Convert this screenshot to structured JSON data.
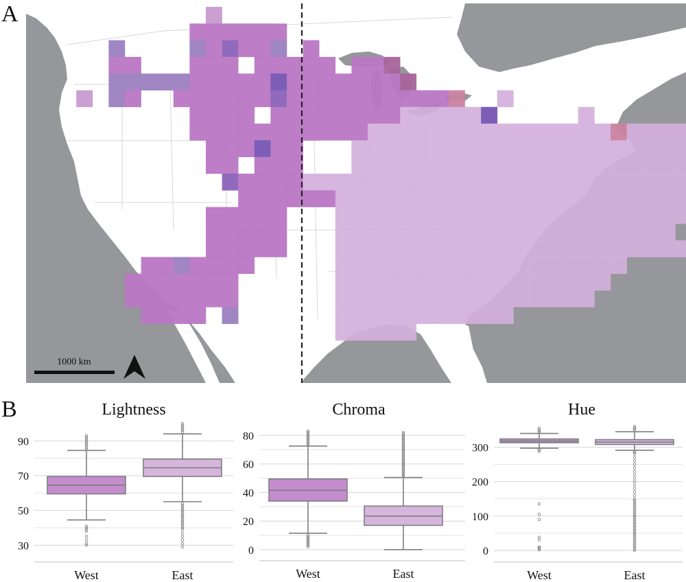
{
  "panel_labels": {
    "a": "A",
    "b": "B"
  },
  "map": {
    "scale_bar_label": "1000 km",
    "north_arrow": "north-arrow-icon",
    "colors": {
      "land": "#ffffff",
      "water": "#96979b",
      "divider": "#222222"
    },
    "grid_columns_lon_start": -125,
    "grid_rows_lat_start": 50,
    "grid_rows": [
      {
        "row": 0,
        "cells": "..........E..........................................."
      },
      {
        "row": 1,
        "cells": ".........DDDDDD......................................."
      },
      {
        "row": 2,
        "cells": "....B....BDCDDB.D....................................."
      },
      {
        "row": 3,
        "cells": "....DD...DDD.DDDDD.DDA................................"
      },
      {
        "row": 4,
        "cells": "....BBBBBDDDDDFDDDDDDDA..............................."
      },
      {
        "row": 5,
        "cells": "..E.BD..DDDDDDCDDDDDDDDDDH..G........................."
      },
      {
        "row": 6,
        "cells": ".........DDDD.DDDDDDDDGGGGGF.....G......D............."
      },
      {
        "row": 7,
        "cells": ".........DDDDDDDDDDDGGGGGGGGGGGGGGGHGGGGGGIIIF.GGG...."
      },
      {
        "row": 8,
        "cells": "..........DDDFDD...GGGGGGGGGGGGGGGGGGGGGGGGGGG........"
      },
      {
        "row": 9,
        "cells": "..........DD.DDD...GGGGGGGGGGGGGGGGGGGGGGGGGGG.G......"
      },
      {
        "row": 10,
        "cells": "...........CDDDDGGGGGGGGGGGGGGGGGGGGGGGGGGGG.........."
      },
      {
        "row": 11,
        "cells": "............DDDDDDGGGGGGGGGGGGGGGGGGGGGGGGGG.........."
      },
      {
        "row": 12,
        "cells": "..........DDDDD...GGGGGGGGGGGGGGGGGGGGGGG............."
      },
      {
        "row": 13,
        "cells": "..........DDDDD...GGGGGGGGGGGGGGGGGGGGG..............."
      },
      {
        "row": 14,
        "cells": "..........DDDDD...GGGGGGGGGGGGGGGGGGGGGG.............."
      },
      {
        "row": 15,
        "cells": "......DDBDDDD.....GGGGGGGGGGGGGGGGGG.................."
      },
      {
        "row": 16,
        "cells": ".....DDDDDDD......GGGGGGGGGGGGGGGGG..................."
      },
      {
        "row": 17,
        "cells": ".....DDDDDDD......GGGGGGGGGGGGGGGG...................."
      },
      {
        "row": 18,
        "cells": "......DDDD.B......GGGGGGGGGGG........................."
      },
      {
        "row": 19,
        "cells": "..................GGGGG..............................."
      }
    ]
  },
  "chart_data": [
    {
      "type": "boxplot",
      "title": "Lightness",
      "categories": [
        "West",
        "East"
      ],
      "ylim": [
        25,
        100
      ],
      "yticks": [
        30,
        50,
        70,
        90
      ],
      "ytick_labels": [
        "30",
        "50",
        "70",
        "90"
      ],
      "grid": true,
      "series": [
        {
          "name": "West",
          "color": "#c48ccd",
          "q1": 59.5,
          "median": 64.5,
          "q3": 69.5,
          "whisker_low": 44.5,
          "whisker_high": 84.5,
          "outliers": [
            30,
            31,
            33,
            35,
            38,
            39,
            40,
            41,
            85,
            86,
            87,
            88,
            89,
            90,
            91,
            92,
            93
          ]
        },
        {
          "name": "East",
          "color": "#d6b6dd",
          "q1": 69.5,
          "median": 74.5,
          "q3": 79.5,
          "whisker_low": 55,
          "whisker_high": 94,
          "outliers": [
            29,
            31,
            33,
            35,
            37,
            39,
            40,
            41,
            42,
            43,
            44,
            45,
            46,
            47,
            48,
            49,
            50,
            51,
            52,
            53,
            54,
            95,
            96,
            97,
            98,
            99,
            100
          ]
        }
      ]
    },
    {
      "type": "boxplot",
      "title": "Chroma",
      "categories": [
        "West",
        "East"
      ],
      "ylim": [
        -2,
        84
      ],
      "yticks": [
        0,
        20,
        40,
        60,
        80
      ],
      "ytick_labels": [
        "0",
        "20",
        "40",
        "60",
        "80"
      ],
      "grid": true,
      "series": [
        {
          "name": "West",
          "color": "#c48ccd",
          "q1": 34,
          "median": 41.5,
          "q3": 49.5,
          "whisker_low": 11.5,
          "whisker_high": 72.5,
          "outliers": [
            2,
            3,
            4,
            5,
            6,
            7,
            8,
            9,
            10,
            73,
            74,
            75,
            76,
            77,
            78,
            79,
            80,
            81,
            82,
            83
          ]
        },
        {
          "name": "East",
          "color": "#d6b6dd",
          "q1": 17,
          "median": 23.5,
          "q3": 30.5,
          "whisker_low": 0,
          "whisker_high": 50.5,
          "outliers": [
            51,
            52,
            53,
            54,
            55,
            56,
            57,
            58,
            59,
            60,
            61,
            62,
            63,
            64,
            65,
            66,
            67,
            68,
            69,
            70,
            71,
            72,
            73,
            74,
            75,
            76,
            77,
            78,
            79,
            80,
            81,
            82
          ]
        }
      ]
    },
    {
      "type": "boxplot",
      "title": "Hue",
      "categories": [
        "West",
        "East"
      ],
      "ylim": [
        -10,
        365
      ],
      "yticks": [
        0,
        100,
        200,
        300
      ],
      "ytick_labels": [
        "0",
        "100",
        "200",
        "300"
      ],
      "grid": true,
      "series": [
        {
          "name": "West",
          "color": "#c48ccd",
          "q1": 313,
          "median": 318,
          "q3": 324,
          "whisker_low": 297,
          "whisker_high": 340,
          "outliers": [
            2,
            5,
            8,
            10,
            30,
            38,
            90,
            105,
            135,
            288,
            292,
            295,
            342,
            346,
            350,
            355
          ]
        },
        {
          "name": "East",
          "color": "#d6b6dd",
          "q1": 308,
          "median": 315,
          "q3": 322,
          "whisker_low": 291,
          "whisker_high": 345,
          "outliers": [
            0,
            5,
            10,
            15,
            20,
            25,
            30,
            35,
            40,
            45,
            50,
            55,
            60,
            65,
            70,
            75,
            80,
            85,
            90,
            95,
            100,
            105,
            110,
            115,
            120,
            125,
            130,
            135,
            140,
            145,
            150,
            160,
            170,
            180,
            190,
            200,
            210,
            220,
            230,
            240,
            250,
            260,
            270,
            280,
            285,
            288,
            348,
            352,
            356,
            360
          ]
        }
      ]
    }
  ]
}
